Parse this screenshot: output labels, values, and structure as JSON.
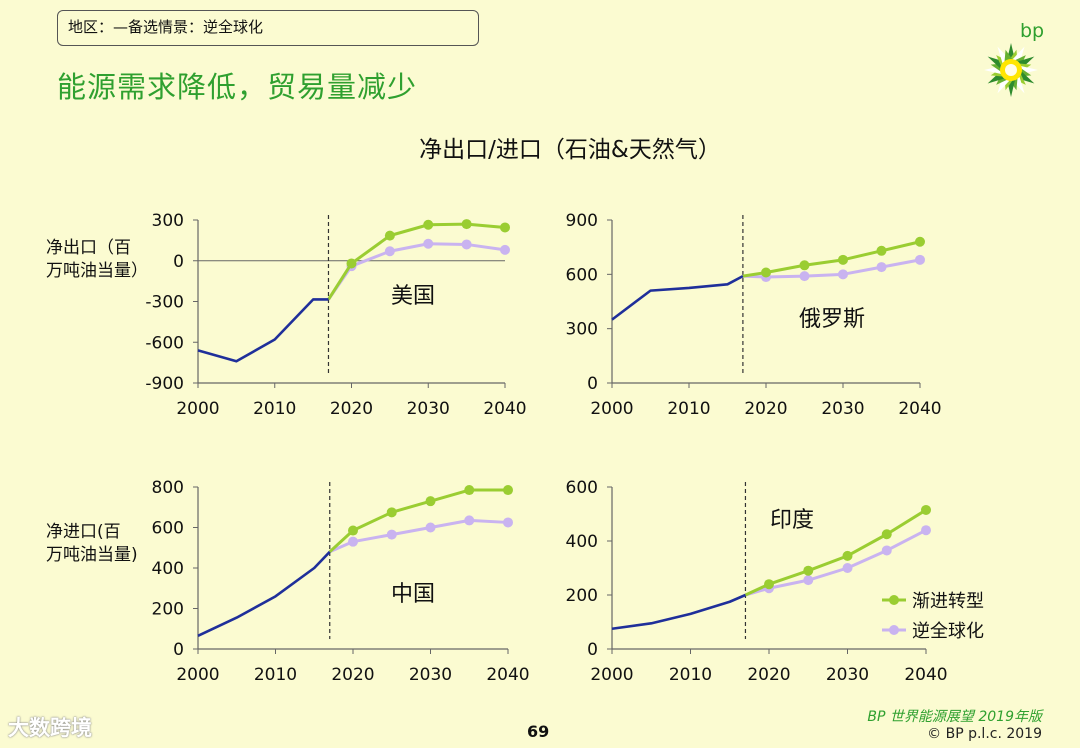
{
  "header": {
    "region_label": "地区：—备选情景：逆全球化",
    "headline": "能源需求降低，贸易量减少",
    "logo_text": "bp"
  },
  "main_title": "净出口/进口（石油&天然气）",
  "legend": {
    "series_a": "渐进转型",
    "series_b": "逆全球化"
  },
  "colors": {
    "historical": "#1f2f9a",
    "gradual": "#9acd32",
    "deglobal": "#c9b3f0",
    "headline": "#2fa02f"
  },
  "footer": {
    "page_number": "69",
    "edition": "BP 世界能源展望 2019年版",
    "copyright": "© BP p.l.c. 2019",
    "watermark": "大数跨境"
  },
  "chart_data": [
    {
      "type": "line",
      "panel": "us",
      "label": "美国",
      "ylabel": [
        "净出口（百",
        "万吨油当量）"
      ],
      "xlim": [
        2000,
        2040
      ],
      "ylim": [
        -900,
        300
      ],
      "yticks": [
        -900,
        -600,
        -300,
        0,
        300
      ],
      "xticks": [
        2000,
        2010,
        2020,
        2030,
        2040
      ],
      "zero_line": true,
      "divider_year": 2017,
      "historical": {
        "x": [
          2000,
          2005,
          2010,
          2015,
          2017
        ],
        "y": [
          -660,
          -740,
          -580,
          -285,
          -285
        ]
      },
      "series": [
        {
          "name": "渐进转型",
          "x": [
            2017,
            2020,
            2025,
            2030,
            2035,
            2040
          ],
          "y": [
            -285,
            -20,
            185,
            265,
            270,
            245
          ],
          "markers": [
            2020,
            2025,
            2030,
            2035,
            2040
          ]
        },
        {
          "name": "逆全球化",
          "x": [
            2017,
            2020,
            2025,
            2030,
            2035,
            2040
          ],
          "y": [
            -285,
            -40,
            70,
            125,
            120,
            80
          ],
          "markers": [
            2020,
            2025,
            2030,
            2035,
            2040
          ]
        }
      ]
    },
    {
      "type": "line",
      "panel": "russia",
      "label": "俄罗斯",
      "ylabel": [],
      "xlim": [
        2000,
        2040
      ],
      "ylim": [
        0,
        900
      ],
      "yticks": [
        0,
        300,
        600,
        900
      ],
      "xticks": [
        2000,
        2010,
        2020,
        2030,
        2040
      ],
      "zero_line": false,
      "divider_year": 2017,
      "historical": {
        "x": [
          2000,
          2005,
          2010,
          2015,
          2017
        ],
        "y": [
          350,
          510,
          525,
          545,
          590
        ]
      },
      "series": [
        {
          "name": "渐进转型",
          "x": [
            2017,
            2020,
            2025,
            2030,
            2035,
            2040
          ],
          "y": [
            590,
            610,
            650,
            680,
            730,
            780
          ],
          "markers": [
            2020,
            2025,
            2030,
            2035,
            2040
          ]
        },
        {
          "name": "逆全球化",
          "x": [
            2017,
            2020,
            2025,
            2030,
            2035,
            2040
          ],
          "y": [
            590,
            585,
            590,
            600,
            640,
            680
          ],
          "markers": [
            2020,
            2025,
            2030,
            2035,
            2040
          ]
        }
      ]
    },
    {
      "type": "line",
      "panel": "china",
      "label": "中国",
      "ylabel": [
        "净进口(百",
        "万吨油当量)"
      ],
      "xlim": [
        2000,
        2040
      ],
      "ylim": [
        0,
        800
      ],
      "yticks": [
        0,
        200,
        400,
        600,
        800
      ],
      "xticks": [
        2000,
        2010,
        2020,
        2030,
        2040
      ],
      "zero_line": false,
      "divider_year": 2017,
      "historical": {
        "x": [
          2000,
          2005,
          2010,
          2015,
          2017
        ],
        "y": [
          65,
          155,
          260,
          400,
          480
        ]
      },
      "series": [
        {
          "name": "渐进转型",
          "x": [
            2017,
            2020,
            2025,
            2030,
            2035,
            2040
          ],
          "y": [
            480,
            585,
            675,
            730,
            785,
            785
          ],
          "markers": [
            2020,
            2025,
            2030,
            2035,
            2040
          ]
        },
        {
          "name": "逆全球化",
          "x": [
            2017,
            2020,
            2025,
            2030,
            2035,
            2040
          ],
          "y": [
            480,
            530,
            565,
            600,
            635,
            625
          ],
          "markers": [
            2020,
            2025,
            2030,
            2035,
            2040
          ]
        }
      ]
    },
    {
      "type": "line",
      "panel": "india",
      "label": "印度",
      "ylabel": [],
      "xlim": [
        2000,
        2040
      ],
      "ylim": [
        0,
        600
      ],
      "yticks": [
        0,
        200,
        400,
        600
      ],
      "xticks": [
        2000,
        2010,
        2020,
        2030,
        2040
      ],
      "zero_line": false,
      "divider_year": 2017,
      "historical": {
        "x": [
          2000,
          2005,
          2010,
          2015,
          2017
        ],
        "y": [
          75,
          95,
          130,
          175,
          200
        ]
      },
      "series": [
        {
          "name": "渐进转型",
          "x": [
            2017,
            2020,
            2025,
            2030,
            2035,
            2040
          ],
          "y": [
            200,
            240,
            290,
            345,
            425,
            515
          ],
          "markers": [
            2020,
            2025,
            2030,
            2035,
            2040
          ]
        },
        {
          "name": "逆全球化",
          "x": [
            2017,
            2020,
            2025,
            2030,
            2035,
            2040
          ],
          "y": [
            200,
            225,
            255,
            300,
            365,
            440
          ],
          "markers": [
            2020,
            2025,
            2030,
            2035,
            2040
          ]
        }
      ]
    }
  ]
}
